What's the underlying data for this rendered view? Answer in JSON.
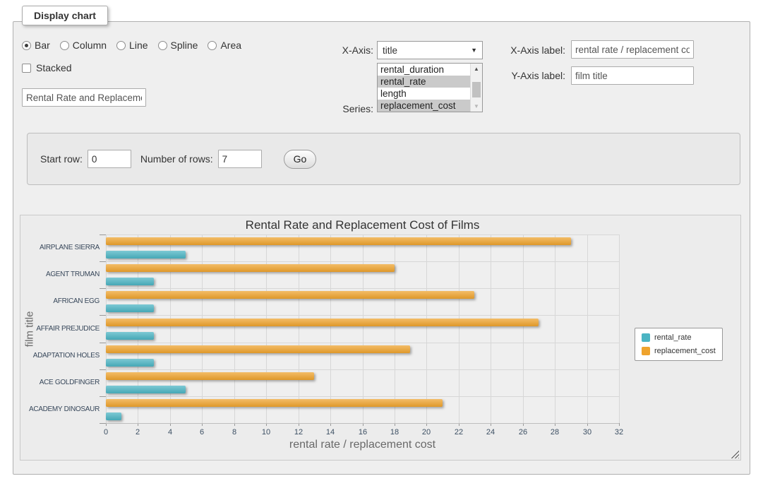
{
  "panel": {
    "legend": "Display chart"
  },
  "controls": {
    "chart_types": [
      {
        "label": "Bar",
        "selected": true
      },
      {
        "label": "Column",
        "selected": false
      },
      {
        "label": "Line",
        "selected": false
      },
      {
        "label": "Spline",
        "selected": false
      },
      {
        "label": "Area",
        "selected": false
      }
    ],
    "stacked": {
      "label": "Stacked",
      "checked": false
    },
    "title_input": {
      "value": "Rental Rate and Replacement Cost of Films"
    },
    "x_axis_row": {
      "label": "X-Axis:",
      "selected": "title"
    },
    "series_row": {
      "label": "Series:",
      "options": [
        {
          "label": "rental_duration",
          "selected": false
        },
        {
          "label": "rental_rate",
          "selected": true
        },
        {
          "label": "length",
          "selected": false
        },
        {
          "label": "replacement_cost",
          "selected": true
        }
      ]
    },
    "x_axis_label_row": {
      "label": "X-Axis label:",
      "value": "rental rate / replacement cost"
    },
    "y_axis_label_row": {
      "label": "Y-Axis label:",
      "value": "film title"
    }
  },
  "rows_panel": {
    "start_row_label": "Start row:",
    "start_row_value": "0",
    "num_rows_label": "Number of rows:",
    "num_rows_value": "7",
    "go_label": "Go"
  },
  "chart_data": {
    "type": "bar",
    "orientation": "horizontal",
    "title": "Rental Rate and Replacement Cost of Films",
    "categories": [
      "AIRPLANE SIERRA",
      "AGENT TRUMAN",
      "AFRICAN EGG",
      "AFFAIR PREJUDICE",
      "ADAPTATION HOLES",
      "ACE GOLDFINGER",
      "ACADEMY DINOSAUR"
    ],
    "series": [
      {
        "name": "rental_rate",
        "color": "#4bb4c3",
        "values": [
          4.99,
          2.99,
          2.99,
          2.99,
          2.99,
          4.99,
          0.99
        ]
      },
      {
        "name": "replacement_cost",
        "color": "#efa32d",
        "values": [
          28.99,
          17.99,
          22.99,
          26.99,
          18.99,
          12.99,
          20.99
        ]
      }
    ],
    "draw_order": [
      "replacement_cost",
      "rental_rate"
    ],
    "xlabel": "rental rate / replacement cost",
    "ylabel": "film title",
    "xlim": [
      0,
      32
    ],
    "xticks": [
      0,
      2,
      4,
      6,
      8,
      10,
      12,
      14,
      16,
      18,
      20,
      22,
      24,
      26,
      28,
      30,
      32
    ],
    "grid": true,
    "legend_position": "right"
  }
}
